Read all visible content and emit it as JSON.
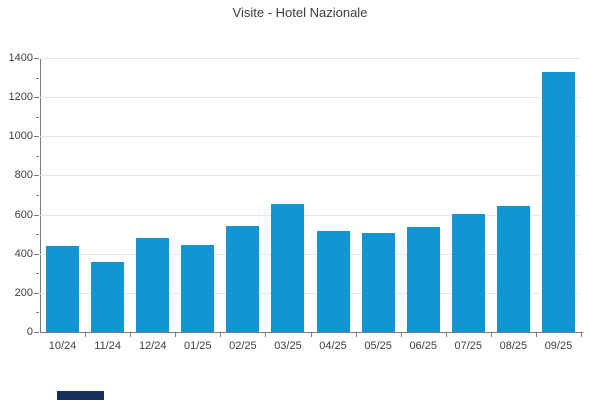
{
  "chart_data": {
    "type": "bar",
    "title": "Visite - Hotel Nazionale",
    "categories": [
      "10/24",
      "11/24",
      "12/24",
      "01/25",
      "02/25",
      "03/25",
      "04/25",
      "05/25",
      "06/25",
      "07/25",
      "08/25",
      "09/25"
    ],
    "values": [
      440,
      360,
      480,
      445,
      540,
      655,
      515,
      505,
      535,
      605,
      645,
      1330
    ],
    "series_name": "Visite",
    "xlabel": "",
    "ylabel": "",
    "ylim": [
      0,
      1400
    ],
    "ytick_step": 200,
    "ytick_minor_step": 100,
    "yticks": [
      0,
      200,
      400,
      600,
      800,
      1000,
      1200,
      1400
    ],
    "grid": "horizontal",
    "legend_position": "none",
    "bar_color": "#1295d3"
  },
  "colors": {
    "background": "#ffffff",
    "bar": "#1295d3",
    "axis": "#7a7a7a",
    "gridline": "#e7e7e7",
    "title_text": "#3d3d3d",
    "tick_text": "#404040",
    "fragment": "#16325c"
  },
  "fragment": {
    "note": "partially visible dark element cut off at bottom edge"
  }
}
